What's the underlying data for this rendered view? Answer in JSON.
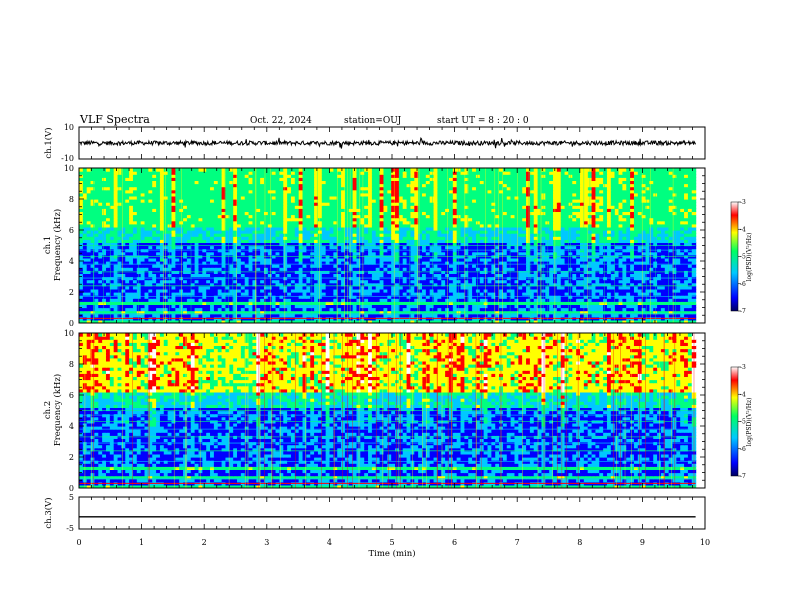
{
  "header": {
    "title": "VLF Spectra",
    "date": "Oct. 22, 2024",
    "station": "station=OUJ",
    "start": "start  UT =  8 : 20 : 0"
  },
  "colorbar_label": "log(PSD)(V²/Hz)",
  "colormap": [
    "#000066",
    "#0000ff",
    "#00c8ff",
    "#00ff80",
    "#ffff00",
    "#ff0000",
    "#ffffff"
  ],
  "chart_data": [
    {
      "type": "line",
      "name": "ch1-waveform",
      "ylabel": "ch.1(V)",
      "ylim": [
        -10,
        10
      ],
      "yticks": [
        "10",
        "-10"
      ],
      "baseline": 0,
      "description_values": "noisy signal around 0 V with spikes to about ±3 V"
    },
    {
      "type": "heatmap",
      "name": "ch1-spectrogram",
      "ylabel": "ch.1\nFrequency (kHz)",
      "ylim": [
        0,
        10
      ],
      "yticks": [
        "0",
        "2",
        "4",
        "6",
        "8",
        "10"
      ],
      "colorbar": {
        "range": [
          -7,
          -3
        ],
        "ticks": [
          "-3",
          "-4",
          "-5",
          "-6",
          "-7"
        ]
      }
    },
    {
      "type": "heatmap",
      "name": "ch2-spectrogram",
      "ylabel": "ch.2\nFrequency (kHz)",
      "ylim": [
        0,
        10
      ],
      "yticks": [
        "0",
        "2",
        "4",
        "6",
        "8",
        "10"
      ],
      "colorbar": {
        "range": [
          -7,
          -3
        ],
        "ticks": [
          "-3",
          "-4",
          "-5",
          "-6",
          "-7"
        ]
      }
    },
    {
      "type": "line",
      "name": "ch3-waveform",
      "ylabel": "ch.3(V)",
      "ylim": [
        -5,
        5
      ],
      "yticks": [
        "5",
        "-5"
      ],
      "baseline": -1.2
    }
  ],
  "xaxis": {
    "label": "Time (min)",
    "range": [
      0,
      10
    ],
    "data_end": 9.85,
    "ticks": [
      "0",
      "1",
      "2",
      "3",
      "4",
      "5",
      "6",
      "7",
      "8",
      "9",
      "10"
    ]
  }
}
